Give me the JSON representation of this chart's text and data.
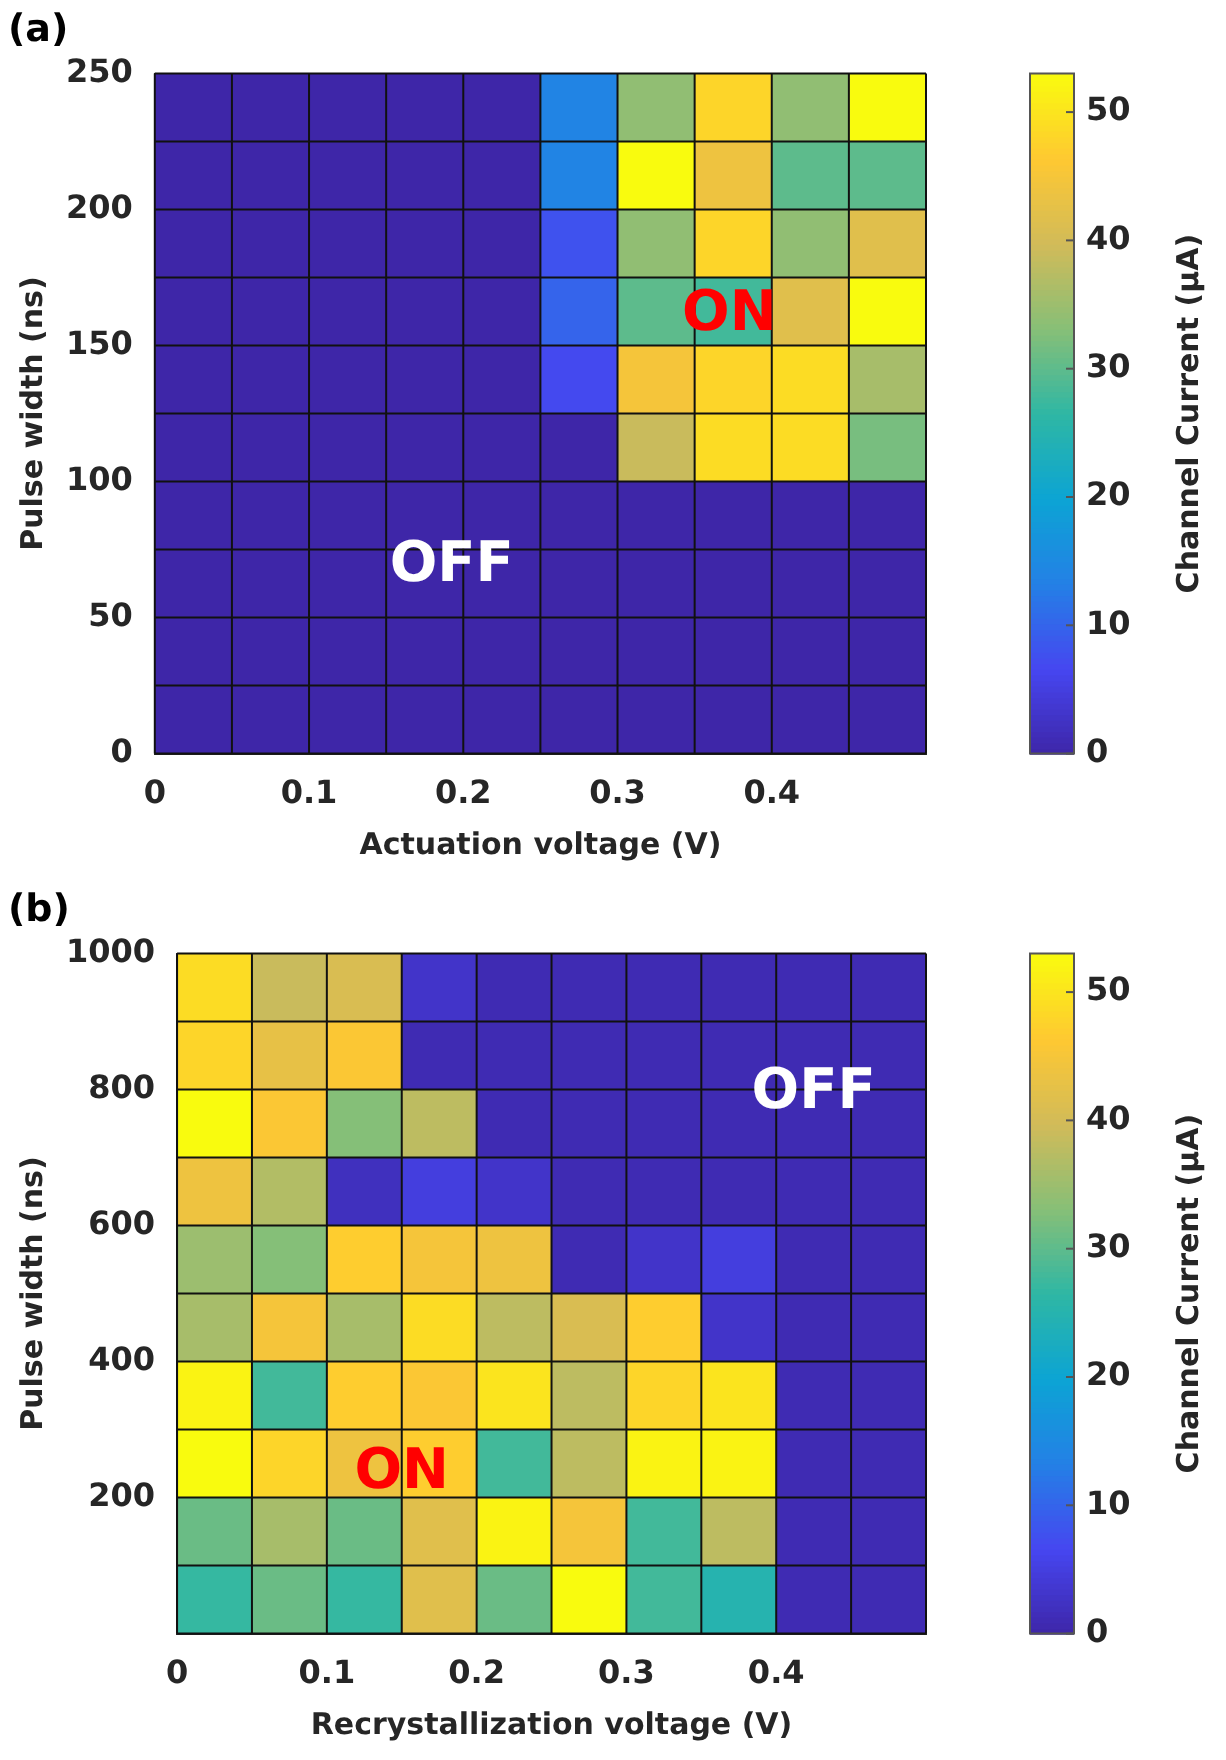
{
  "chart_data": [
    {
      "type": "heatmap",
      "title": "(a)",
      "xlabel": "Actuation voltage (V)",
      "ylabel": "Pulse width (ns)",
      "clabel": "Channel Current (μA)",
      "x": [
        0.025,
        0.075,
        0.125,
        0.175,
        0.225,
        0.275,
        0.325,
        0.375,
        0.425,
        0.475
      ],
      "y": [
        237.5,
        212.5,
        187.5,
        162.5,
        137.5,
        112.5,
        87.5,
        62.5,
        37.5,
        12.5
      ],
      "xlim": [
        0,
        0.5
      ],
      "xticks": [
        0,
        0.1,
        0.2,
        0.3,
        0.4
      ],
      "ylim": [
        0,
        250
      ],
      "yticks": [
        0,
        50,
        100,
        150,
        200,
        250
      ],
      "clim": [
        0,
        53
      ],
      "cticks": [
        0,
        10,
        20,
        30,
        40,
        50
      ],
      "cells": [
        [
          0,
          0,
          0,
          0,
          0,
          14,
          34,
          48,
          34,
          53
        ],
        [
          0,
          0,
          0,
          0,
          0,
          14,
          53,
          44,
          30,
          30
        ],
        [
          0,
          0,
          0,
          0,
          0,
          8,
          34,
          48,
          34,
          42
        ],
        [
          0,
          0,
          0,
          0,
          0,
          10,
          30,
          28,
          42,
          53
        ],
        [
          0,
          0,
          0,
          0,
          0,
          7,
          45,
          48,
          49,
          36
        ],
        [
          0,
          0,
          0,
          0,
          0,
          0,
          39,
          49,
          49,
          32
        ],
        [
          0,
          0,
          0,
          0,
          0,
          0,
          0,
          0,
          0,
          0
        ],
        [
          0,
          0,
          0,
          0,
          0,
          0,
          0,
          0,
          0,
          0
        ],
        [
          0,
          0,
          0,
          0,
          0,
          0,
          0,
          0,
          0,
          0
        ],
        [
          0,
          0,
          0,
          0,
          0,
          0,
          0,
          0,
          0,
          0
        ]
      ],
      "annotations": [
        "ON",
        "OFF"
      ],
      "grid": true
    },
    {
      "type": "heatmap",
      "title": "(b)",
      "xlabel": "Recrystallization voltage (V)",
      "ylabel": "Pulse width (ns)",
      "clabel": "Channel Current (μA)",
      "x": [
        0.025,
        0.075,
        0.125,
        0.175,
        0.225,
        0.275,
        0.325,
        0.375,
        0.425,
        0.475
      ],
      "y": [
        950,
        850,
        750,
        650,
        550,
        450,
        350,
        250,
        150,
        50
      ],
      "xlim": [
        0,
        0.5
      ],
      "xticks": [
        0,
        0.1,
        0.2,
        0.3,
        0.4
      ],
      "ylim": [
        0,
        1000
      ],
      "yticks": [
        200,
        400,
        600,
        800,
        1000
      ],
      "clim": [
        0,
        53
      ],
      "cticks": [
        0,
        10,
        20,
        30,
        40,
        50
      ],
      "cells": [
        [
          49,
          39,
          41,
          3,
          1,
          1,
          1,
          1,
          1,
          1
        ],
        [
          48,
          43,
          46,
          1,
          1,
          1,
          1,
          1,
          1,
          1
        ],
        [
          53,
          46,
          33,
          38,
          1,
          1,
          1,
          1,
          1,
          1
        ],
        [
          44,
          37,
          2,
          5,
          3,
          1,
          1,
          1,
          1,
          1
        ],
        [
          35,
          33,
          47,
          45,
          44,
          1,
          3,
          5,
          1,
          1
        ],
        [
          36,
          45,
          36,
          49,
          38,
          41,
          47,
          3,
          1,
          1
        ],
        [
          52,
          28,
          47,
          46,
          50,
          38,
          48,
          50,
          1,
          1
        ],
        [
          53,
          48,
          44,
          47,
          28,
          38,
          52,
          52,
          1,
          1
        ],
        [
          31,
          36,
          31,
          42,
          52,
          45,
          28,
          38,
          1,
          1
        ],
        [
          27,
          31,
          27,
          42,
          31,
          53,
          28,
          25,
          1,
          1
        ]
      ],
      "annotations": [
        "OFF",
        "ON"
      ],
      "grid": true
    }
  ]
}
